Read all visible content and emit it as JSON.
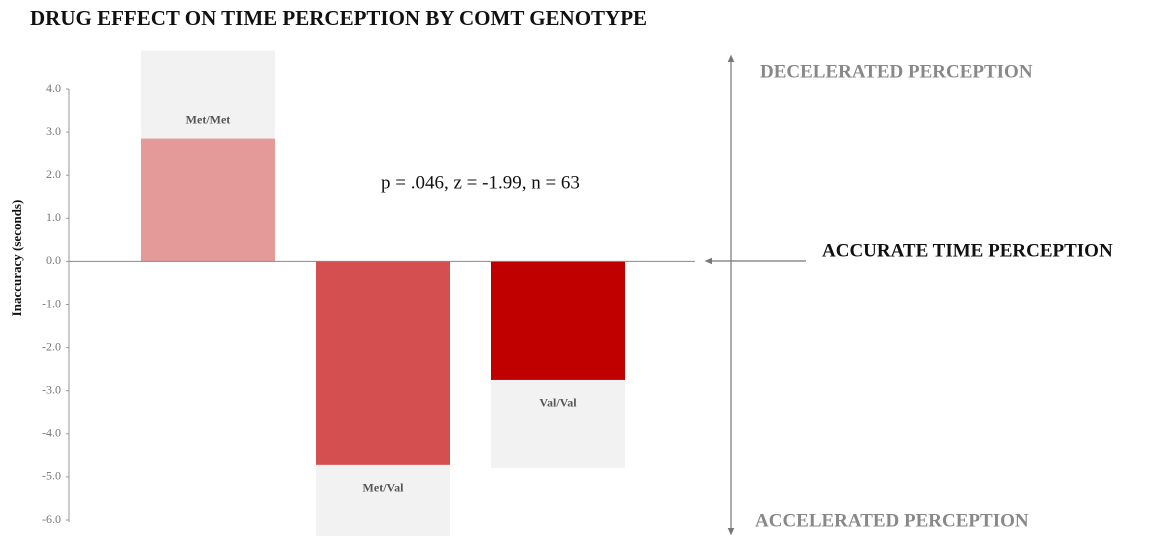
{
  "chart_data": {
    "type": "bar",
    "title": "DRUG EFFECT ON TIME PERCEPTION BY COMT GENOTYPE",
    "y_label": "Inaccuracy (seconds)",
    "annotations": {
      "stats": "p = .046, z = -1.99, n = 63",
      "top": "DECELERATED PERCEPTION",
      "middle": "ACCURATE TIME PERCEPTION",
      "bottom": "ACCELERATED PERCEPTION"
    },
    "categories": [
      "Met/Met",
      "Met/Val",
      "Val/Val"
    ],
    "values": [
      2.85,
      -4.72,
      -2.75
    ],
    "colors": [
      "#e59a9a",
      "#d44f4f",
      "#c00000"
    ],
    "ylim": [
      -6,
      4
    ],
    "yticks": [
      {
        "value": 4,
        "label": "4.0"
      },
      {
        "value": 3,
        "label": "3.0"
      },
      {
        "value": 2,
        "label": "2.0"
      },
      {
        "value": 1,
        "label": "1.0"
      },
      {
        "value": 0,
        "label": "0.0"
      },
      {
        "value": -1,
        "label": "-1.0"
      },
      {
        "value": -2,
        "label": "-2.0"
      },
      {
        "value": -3,
        "label": "-3.0"
      },
      {
        "value": -4,
        "label": "-4.0"
      },
      {
        "value": -5,
        "label": "-5.0"
      },
      {
        "value": -6,
        "label": "-6.0"
      }
    ]
  }
}
